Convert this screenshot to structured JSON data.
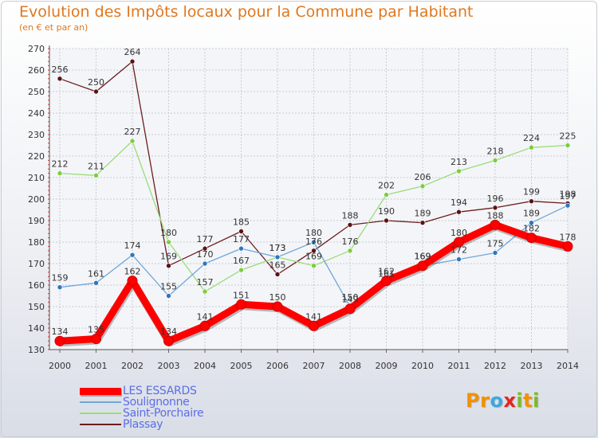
{
  "header": {
    "title": "Evolution des Impôts locaux pour la Commune par Habitant",
    "subtitle": "(en € et par an)"
  },
  "logo": {
    "text": "Proxiti",
    "letters": [
      {
        "ch": "P",
        "color": "#f29100"
      },
      {
        "ch": "r",
        "color": "#f29100"
      },
      {
        "ch": "o",
        "color": "#3aa9dd"
      },
      {
        "ch": "x",
        "color": "#e5261f"
      },
      {
        "ch": "i",
        "color": "#7fb928"
      },
      {
        "ch": "t",
        "color": "#f29100"
      },
      {
        "ch": "i",
        "color": "#7fb928"
      }
    ]
  },
  "chart_data": {
    "type": "line",
    "title": "Evolution des Impôts locaux pour la Commune par Habitant",
    "xlabel": "",
    "ylabel": "(en € et par an)",
    "ylim": [
      130,
      270
    ],
    "yticks": [
      130,
      140,
      150,
      160,
      170,
      180,
      190,
      200,
      210,
      220,
      230,
      240,
      250,
      260,
      270
    ],
    "x": [
      "2000",
      "2001",
      "2002",
      "2003",
      "2004",
      "2005",
      "2006",
      "2007",
      "2008",
      "2009",
      "2010",
      "2011",
      "2012",
      "2013",
      "2014"
    ],
    "grid": true,
    "legend_position": "bottom-left",
    "series": [
      {
        "name": "Plassay",
        "color": "#6b1e1e",
        "marker": "#5a1414",
        "values": [
          256,
          250,
          264,
          169,
          177,
          185,
          165,
          176,
          188,
          190,
          189,
          194,
          196,
          199,
          198
        ]
      },
      {
        "name": "Saint-Porchaire",
        "color": "#99dd77",
        "marker": "#7ccd3d",
        "values": [
          212,
          211,
          227,
          180,
          157,
          167,
          173,
          169,
          176,
          202,
          206,
          213,
          218,
          224,
          225
        ]
      },
      {
        "name": "Soulignonne",
        "color": "#6fa7d9",
        "marker": "#2e76bb",
        "values": [
          159,
          161,
          174,
          155,
          170,
          177,
          173,
          180,
          150,
          161,
          169,
          172,
          175,
          189,
          197
        ]
      },
      {
        "name": "LES ESSARDS",
        "color": "#ff0000",
        "marker": "#ff0000",
        "values": [
          134,
          135,
          162,
          134,
          141,
          151,
          150,
          141,
          149,
          162,
          169,
          180,
          188,
          182,
          178
        ]
      }
    ]
  }
}
